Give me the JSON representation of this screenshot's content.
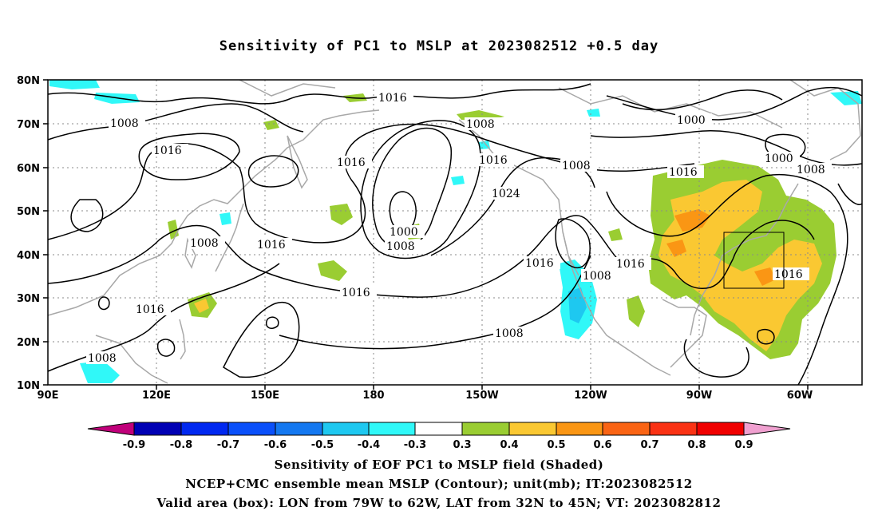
{
  "title": "Sensitivity of PC1 to MSLP at 2023082512 +0.5 day",
  "axes": {
    "lat_labels": [
      "80N",
      "70N",
      "60N",
      "50N",
      "40N",
      "30N",
      "20N",
      "10N"
    ],
    "lon_labels": [
      "90E",
      "120E",
      "150E",
      "180",
      "150W",
      "120W",
      "90W",
      "60W"
    ]
  },
  "contour_labels": [
    "1016",
    "1008",
    "1016",
    "1016",
    "1008",
    "1016",
    "1000",
    "1008",
    "1016",
    "1008",
    "1016",
    "1024",
    "1016",
    "1008",
    "1016",
    "1008",
    "1000",
    "1016",
    "1008",
    "1000",
    "1016",
    "1016",
    "1016",
    "1008",
    "1008"
  ],
  "colorbar": {
    "labels": [
      "-0.9",
      "-0.8",
      "-0.7",
      "-0.6",
      "-0.5",
      "-0.4",
      "-0.3",
      "0.3",
      "0.4",
      "0.5",
      "0.6",
      "0.7",
      "0.8",
      "0.9"
    ],
    "colors": [
      "#c0007a",
      "#0000b4",
      "#0028f0",
      "#0a50fa",
      "#1478f0",
      "#1ec8f0",
      "#30f8f8",
      "#ffffff",
      "#9acd32",
      "#fac832",
      "#fa9614",
      "#fa6414",
      "#fa3214",
      "#f00000",
      "#f0a0d0"
    ]
  },
  "captions": [
    "Sensitivity of EOF PC1 to MSLP field (Shaded)",
    "NCEP+CMC ensemble mean MSLP (Contour); unit(mb); IT:2023082512",
    "Valid area (box): LON from 79W to 62W, LAT from 32N to 45N; VT: 2023082812"
  ],
  "valid_box": {
    "lon_west": "79W",
    "lon_east": "62W",
    "lat_south": "32N",
    "lat_north": "45N"
  },
  "colors": {
    "coast": "#a8a8a8",
    "contour": "#000000",
    "grid": "#8a8a8a"
  }
}
